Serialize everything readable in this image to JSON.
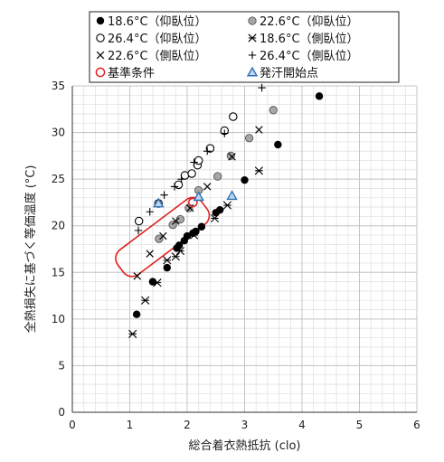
{
  "chart_data": {
    "type": "scatter",
    "xlabel": "総合着衣熱抵抗 (clo)",
    "ylabel": "全熱損失に基づく等価温度 (°C)",
    "xlim": [
      0,
      6
    ],
    "ylim": [
      0,
      35
    ],
    "xticks": [
      0,
      1,
      2,
      3,
      4,
      5,
      6
    ],
    "yticks": [
      0,
      5,
      10,
      15,
      20,
      25,
      30,
      35
    ],
    "minor_grid": true,
    "legend": [
      {
        "label": "18.6°C（仰臥位）",
        "marker": "filled-circle"
      },
      {
        "label": "22.6°C（仰臥位）",
        "marker": "gray-circle"
      },
      {
        "label": "26.4°C（仰臥位）",
        "marker": "open-circle"
      },
      {
        "label": "18.6°C（側臥位）",
        "marker": "asterisk"
      },
      {
        "label": "22.6°C（側臥位）",
        "marker": "x"
      },
      {
        "label": "26.4°C（側臥位）",
        "marker": "plus"
      },
      {
        "label": "基準条件",
        "marker": "red-circle"
      },
      {
        "label": "発汗開始点",
        "marker": "blue-triangle"
      }
    ],
    "series": [
      {
        "marker": "filled-circle",
        "points": [
          [
            1.12,
            10.5
          ],
          [
            1.4,
            14.0
          ],
          [
            1.65,
            15.5
          ],
          [
            1.82,
            17.6
          ],
          [
            1.86,
            17.9
          ],
          [
            1.95,
            18.4
          ],
          [
            2.0,
            18.9
          ],
          [
            2.1,
            19.2
          ],
          [
            2.15,
            19.4
          ],
          [
            2.25,
            19.9
          ],
          [
            2.5,
            21.4
          ],
          [
            2.57,
            21.7
          ],
          [
            3.0,
            24.9
          ],
          [
            3.58,
            28.7
          ],
          [
            4.3,
            33.9
          ]
        ]
      },
      {
        "marker": "gray-circle",
        "points": [
          [
            1.51,
            18.6
          ],
          [
            1.75,
            20.1
          ],
          [
            1.88,
            20.7
          ],
          [
            2.03,
            21.9
          ],
          [
            2.2,
            23.8
          ],
          [
            2.53,
            25.3
          ],
          [
            2.76,
            27.5
          ],
          [
            3.08,
            29.4
          ],
          [
            3.5,
            32.4
          ]
        ]
      },
      {
        "marker": "open-circle",
        "points": [
          [
            1.16,
            20.5
          ],
          [
            1.5,
            22.4
          ],
          [
            1.85,
            24.4
          ],
          [
            1.96,
            25.4
          ],
          [
            2.08,
            25.6
          ],
          [
            2.18,
            26.5
          ],
          [
            2.2,
            27.0
          ],
          [
            2.4,
            28.3
          ],
          [
            2.65,
            30.2
          ],
          [
            2.8,
            31.7
          ]
        ]
      },
      {
        "marker": "asterisk",
        "points": [
          [
            1.05,
            8.4
          ],
          [
            1.27,
            12.0
          ],
          [
            1.48,
            13.9
          ],
          [
            1.65,
            16.3
          ],
          [
            1.8,
            16.7
          ],
          [
            1.88,
            17.3
          ],
          [
            2.12,
            19.0
          ],
          [
            2.48,
            20.8
          ],
          [
            2.7,
            22.2
          ],
          [
            3.25,
            25.9
          ]
        ]
      },
      {
        "marker": "x",
        "points": [
          [
            1.13,
            14.6
          ],
          [
            1.35,
            17.0
          ],
          [
            1.58,
            18.9
          ],
          [
            1.8,
            20.5
          ],
          [
            2.05,
            21.9
          ],
          [
            2.35,
            24.2
          ],
          [
            2.78,
            27.4
          ],
          [
            3.25,
            30.3
          ]
        ]
      },
      {
        "marker": "plus",
        "points": [
          [
            1.15,
            19.5
          ],
          [
            1.35,
            21.5
          ],
          [
            1.6,
            23.3
          ],
          [
            1.78,
            24.2
          ],
          [
            1.9,
            25.0
          ],
          [
            2.12,
            26.8
          ],
          [
            2.35,
            28.0
          ],
          [
            2.65,
            29.9
          ],
          [
            3.3,
            34.8
          ]
        ]
      },
      {
        "marker": "red-circle",
        "points": [
          [
            2.1,
            22.5
          ]
        ]
      },
      {
        "marker": "blue-triangle",
        "points": [
          [
            1.5,
            22.4
          ],
          [
            2.2,
            23.1
          ],
          [
            2.78,
            23.2
          ]
        ]
      }
    ],
    "annotation": {
      "type": "rounded-rectangle-outline",
      "color": "#e02020",
      "rotation_deg": -37
    }
  }
}
